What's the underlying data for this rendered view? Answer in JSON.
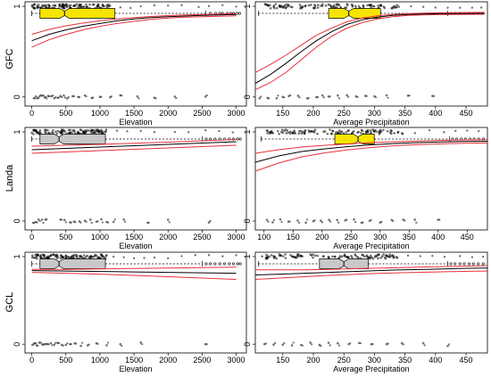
{
  "colors": {
    "box_highlight": "#f5e400",
    "box_plain": "#c8c8c8",
    "fit_line": "#000000",
    "ci_line": "#e8303a",
    "points": "#000000"
  },
  "chart_data": [
    {
      "type": "scatter",
      "row_label": "GFC",
      "xlabel": "Elevation",
      "x_ticks": [
        0,
        500,
        1000,
        1500,
        2000,
        2500,
        3000
      ],
      "xlim": [
        -100,
        3150
      ],
      "y_ticks": [
        0,
        1
      ],
      "ylim": [
        -0.1,
        1.05
      ],
      "boxplot": {
        "min": 0,
        "q1": 120,
        "median": 480,
        "q3": 1220,
        "max": 2550,
        "notch_halfwidth": 70,
        "outliers": [
          2620,
          2700,
          2760,
          2800,
          2870,
          2920,
          2960,
          3010,
          3050
        ],
        "highlight": true
      },
      "fit": {
        "x": [
          0,
          250,
          500,
          750,
          1000,
          1250,
          1500,
          1750,
          2000,
          2250,
          2500,
          2750,
          3000
        ],
        "y": [
          0.62,
          0.69,
          0.74,
          0.78,
          0.81,
          0.84,
          0.86,
          0.875,
          0.885,
          0.893,
          0.9,
          0.905,
          0.91
        ]
      },
      "ci_upper": [
        0.69,
        0.745,
        0.785,
        0.815,
        0.84,
        0.86,
        0.875,
        0.888,
        0.898,
        0.905,
        0.91,
        0.915,
        0.92
      ],
      "ci_lower": [
        0.55,
        0.63,
        0.69,
        0.74,
        0.78,
        0.81,
        0.835,
        0.855,
        0.87,
        0.88,
        0.885,
        0.89,
        0.895
      ],
      "cluster_x": [
        0,
        1150
      ],
      "sparse_x": [
        1300,
        1450,
        1600,
        1800,
        2000,
        2200,
        2450,
        2600,
        2800,
        3000
      ],
      "zero_x": [
        30,
        60,
        95,
        130,
        170,
        200,
        240,
        290,
        330,
        380,
        420,
        470,
        520,
        600,
        680,
        780,
        880,
        1000,
        1150,
        1300,
        1550,
        1800,
        2100,
        2550
      ]
    },
    {
      "type": "scatter",
      "row_label": "",
      "xlabel": "Average Precipitation",
      "x_ticks": [
        150,
        200,
        250,
        300,
        350,
        400,
        450
      ],
      "xlim": [
        105,
        485
      ],
      "y_ticks": [
        0,
        1
      ],
      "ylim": [
        -0.1,
        1.05
      ],
      "boxplot": {
        "min": 110,
        "q1": 225,
        "median": 258,
        "q3": 310,
        "max": 420,
        "notch_halfwidth": 8,
        "outliers": [
          425,
          432,
          440,
          448,
          455,
          462,
          470,
          478
        ],
        "highlight": true
      },
      "fit": {
        "x": [
          105,
          130,
          155,
          180,
          205,
          230,
          255,
          280,
          305,
          330,
          355,
          380,
          405,
          430,
          455,
          480
        ],
        "y": [
          0.15,
          0.25,
          0.37,
          0.5,
          0.62,
          0.72,
          0.8,
          0.85,
          0.88,
          0.9,
          0.91,
          0.915,
          0.918,
          0.92,
          0.921,
          0.922
        ]
      },
      "ci_upper": [
        0.27,
        0.36,
        0.46,
        0.57,
        0.68,
        0.76,
        0.83,
        0.87,
        0.895,
        0.91,
        0.92,
        0.925,
        0.928,
        0.93,
        0.932,
        0.933
      ],
      "ci_lower": [
        0.08,
        0.16,
        0.27,
        0.41,
        0.55,
        0.67,
        0.76,
        0.82,
        0.86,
        0.885,
        0.9,
        0.905,
        0.908,
        0.91,
        0.911,
        0.912
      ],
      "cluster_x": [
        120,
        340
      ],
      "sparse_x": [
        360,
        380,
        400,
        420,
        440,
        460,
        475
      ],
      "zero_x": [
        112,
        125,
        140,
        150,
        160,
        175,
        190,
        205,
        215,
        225,
        240,
        255,
        270,
        285,
        300,
        320,
        355,
        395
      ]
    },
    {
      "type": "scatter",
      "row_label": "Landa",
      "xlabel": "Elevation",
      "x_ticks": [
        0,
        500,
        1000,
        1500,
        2000,
        2500,
        3000
      ],
      "xlim": [
        -100,
        3150
      ],
      "y_ticks": [
        0,
        1
      ],
      "ylim": [
        -0.1,
        1.05
      ],
      "boxplot": {
        "min": 0,
        "q1": 120,
        "median": 400,
        "q3": 1080,
        "max": 2500,
        "notch_halfwidth": 70,
        "outliers": [
          2560,
          2620,
          2690,
          2760,
          2830,
          2900,
          2960,
          3020,
          3060
        ],
        "highlight": false
      },
      "fit": {
        "x": [
          0,
          500,
          1000,
          1500,
          2000,
          2500,
          3000
        ],
        "y": [
          0.8,
          0.815,
          0.83,
          0.845,
          0.86,
          0.875,
          0.89
        ]
      },
      "ci_upper": [
        0.84,
        0.85,
        0.86,
        0.872,
        0.885,
        0.9,
        0.915
      ],
      "ci_lower": [
        0.76,
        0.775,
        0.79,
        0.805,
        0.82,
        0.835,
        0.85
      ],
      "cluster_x": [
        0,
        1100
      ],
      "sparse_x": [
        1250,
        1400,
        1600,
        1800,
        2100,
        2300,
        2550,
        2750,
        2950
      ],
      "zero_x": [
        20,
        60,
        100,
        150,
        200,
        420,
        480,
        560,
        620,
        700,
        780,
        860,
        950,
        1020,
        1100,
        1200,
        1350,
        1700,
        2000,
        2600
      ]
    },
    {
      "type": "scatter",
      "row_label": "",
      "xlabel": "Average Precipitation",
      "x_ticks": [
        100,
        150,
        200,
        250,
        300,
        350,
        400,
        450
      ],
      "xlim": [
        85,
        485
      ],
      "y_ticks": [
        0,
        1
      ],
      "ylim": [
        -0.1,
        1.05
      ],
      "boxplot": {
        "min": 95,
        "q1": 222,
        "median": 262,
        "q3": 290,
        "max": 420,
        "notch_halfwidth": 8,
        "outliers": [
          425,
          432,
          440,
          447,
          455,
          462,
          470,
          478
        ],
        "highlight": true
      },
      "fit": {
        "x": [
          85,
          125,
          165,
          205,
          245,
          285,
          325,
          365,
          405,
          445,
          485
        ],
        "y": [
          0.66,
          0.73,
          0.78,
          0.81,
          0.835,
          0.855,
          0.87,
          0.88,
          0.887,
          0.892,
          0.895
        ]
      },
      "ci_upper": [
        0.76,
        0.8,
        0.83,
        0.85,
        0.865,
        0.88,
        0.89,
        0.898,
        0.905,
        0.91,
        0.914
      ],
      "ci_lower": [
        0.56,
        0.65,
        0.72,
        0.765,
        0.8,
        0.825,
        0.845,
        0.858,
        0.866,
        0.872,
        0.876
      ],
      "cluster_x": [
        100,
        340
      ],
      "sparse_x": [
        360,
        385,
        410,
        430,
        450,
        470
      ],
      "zero_x": [
        105,
        115,
        128,
        142,
        158,
        172,
        185,
        198,
        212,
        226,
        240,
        255,
        268,
        282,
        300,
        320,
        340,
        360,
        400
      ]
    },
    {
      "type": "scatter",
      "row_label": "GCL",
      "xlabel": "Elevation",
      "x_ticks": [
        0,
        500,
        1000,
        1500,
        2000,
        2500,
        3000
      ],
      "xlim": [
        -100,
        3150
      ],
      "y_ticks": [
        0,
        1
      ],
      "ylim": [
        -0.1,
        1.05
      ],
      "boxplot": {
        "min": 0,
        "q1": 120,
        "median": 400,
        "q3": 1080,
        "max": 2500,
        "notch_halfwidth": 70,
        "outliers": [
          2560,
          2620,
          2690,
          2760,
          2830,
          2900,
          2960,
          3020,
          3060
        ],
        "highlight": false
      },
      "fit": {
        "x": [
          0,
          500,
          1000,
          1500,
          2000,
          2500,
          3000
        ],
        "y": [
          0.84,
          0.835,
          0.83,
          0.825,
          0.82,
          0.815,
          0.81
        ]
      },
      "ci_upper": [
        0.855,
        0.855,
        0.86,
        0.865,
        0.87,
        0.875,
        0.88
      ],
      "ci_lower": [
        0.82,
        0.81,
        0.8,
        0.785,
        0.77,
        0.755,
        0.74
      ],
      "cluster_x": [
        0,
        1100
      ],
      "sparse_x": [
        1200,
        1350,
        1500,
        1650,
        1800,
        2000,
        2200,
        2400,
        2600,
        2800,
        3000
      ],
      "zero_x": [
        10,
        40,
        70,
        110,
        150,
        190,
        230,
        280,
        330,
        380,
        440,
        500,
        560,
        630,
        720,
        820,
        950,
        1100,
        1300,
        1600,
        2550
      ]
    },
    {
      "type": "scatter",
      "row_label": "",
      "xlabel": "Average Precipitation",
      "x_ticks": [
        150,
        200,
        250,
        300,
        350,
        400,
        450
      ],
      "xlim": [
        105,
        485
      ],
      "y_ticks": [
        0,
        1
      ],
      "ylim": [
        -0.1,
        1.05
      ],
      "boxplot": {
        "min": 110,
        "q1": 210,
        "median": 250,
        "q3": 290,
        "max": 420,
        "notch_halfwidth": 8,
        "outliers": [
          425,
          432,
          440,
          447,
          455,
          462,
          470,
          478
        ],
        "highlight": false
      },
      "fit": {
        "x": [
          105,
          145,
          185,
          225,
          265,
          305,
          345,
          385,
          425,
          465,
          485
        ],
        "y": [
          0.79,
          0.8,
          0.81,
          0.82,
          0.83,
          0.84,
          0.848,
          0.855,
          0.862,
          0.868,
          0.87
        ]
      },
      "ci_upper": [
        0.85,
        0.848,
        0.85,
        0.855,
        0.862,
        0.868,
        0.875,
        0.882,
        0.888,
        0.894,
        0.897
      ],
      "ci_lower": [
        0.74,
        0.755,
        0.77,
        0.785,
        0.797,
        0.808,
        0.816,
        0.822,
        0.828,
        0.833,
        0.835
      ],
      "cluster_x": [
        115,
        340
      ],
      "sparse_x": [
        355,
        375,
        395,
        415,
        440,
        460,
        478
      ],
      "zero_x": [
        120,
        135,
        150,
        165,
        180,
        195,
        210,
        225,
        240,
        258,
        275,
        295,
        320,
        345,
        380,
        420
      ]
    }
  ]
}
